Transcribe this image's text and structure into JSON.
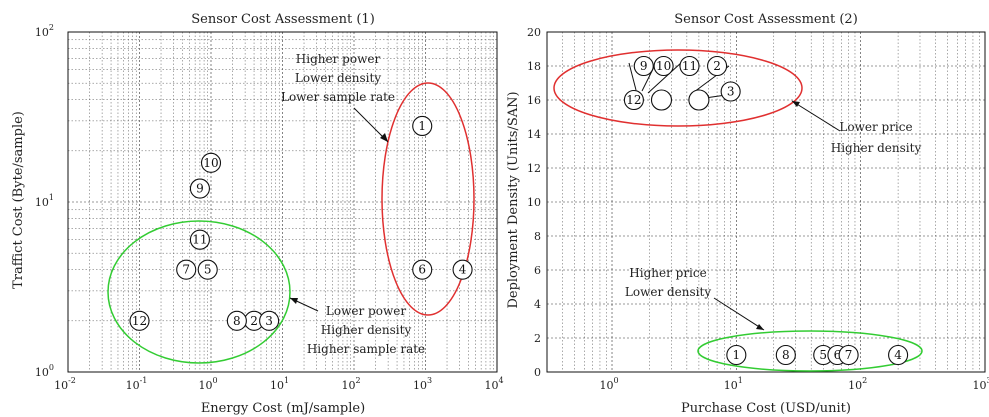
{
  "chart_data": [
    {
      "type": "scatter",
      "title": "Sensor Cost Assessment (1)",
      "xlabel": "Energy Cost (mJ/sample)",
      "ylabel": "Traffict Cost (Byte/sample)",
      "xscale": "log",
      "yscale": "log",
      "xlim": [
        0.01,
        10000
      ],
      "ylim": [
        1,
        100
      ],
      "grid": true,
      "x_ticks": [
        {
          "base": "10",
          "exp": "-2"
        },
        {
          "base": "10",
          "exp": "-1"
        },
        {
          "base": "10",
          "exp": "0"
        },
        {
          "base": "10",
          "exp": "1"
        },
        {
          "base": "10",
          "exp": "2"
        },
        {
          "base": "10",
          "exp": "3"
        },
        {
          "base": "10",
          "exp": "4"
        }
      ],
      "y_ticks": [
        {
          "base": "10",
          "exp": "0"
        },
        {
          "base": "10",
          "exp": "1"
        },
        {
          "base": "10",
          "exp": "2"
        }
      ],
      "points": [
        {
          "label": "1",
          "x": 900,
          "y": 28
        },
        {
          "label": "2",
          "x": 4,
          "y": 2
        },
        {
          "label": "3",
          "x": 6.5,
          "y": 2
        },
        {
          "label": "4",
          "x": 3300,
          "y": 4
        },
        {
          "label": "5",
          "x": 0.9,
          "y": 4
        },
        {
          "label": "6",
          "x": 900,
          "y": 4
        },
        {
          "label": "7",
          "x": 0.45,
          "y": 4
        },
        {
          "label": "8",
          "x": 2.3,
          "y": 2
        },
        {
          "label": "9",
          "x": 0.7,
          "y": 12
        },
        {
          "label": "10",
          "x": 1.0,
          "y": 17
        },
        {
          "label": "11",
          "x": 0.7,
          "y": 6
        },
        {
          "label": "12",
          "x": 0.1,
          "y": 2
        }
      ],
      "annotations": [
        {
          "group": "red",
          "lines": [
            "Higher power",
            "Lower density",
            "Lower sample rate"
          ]
        },
        {
          "group": "green",
          "lines": [
            "Lower power",
            "Higher density",
            "Higher sample rate"
          ]
        }
      ]
    },
    {
      "type": "scatter",
      "title": "Sensor Cost Assessment (2)",
      "xlabel": "Purchase Cost (USD/unit)",
      "ylabel": "Deployment Density (Units/SAN)",
      "xscale": "log",
      "yscale": "linear",
      "xlim": [
        0.3,
        1000
      ],
      "ylim": [
        0,
        20
      ],
      "grid": true,
      "x_ticks": [
        {
          "base": "10",
          "exp": "0"
        },
        {
          "base": "10",
          "exp": "1"
        },
        {
          "base": "10",
          "exp": "2"
        },
        {
          "base": "10",
          "exp": "3"
        }
      ],
      "y_ticks": [
        "0",
        "2",
        "4",
        "6",
        "8",
        "10",
        "12",
        "14",
        "16",
        "18",
        "20"
      ],
      "points": [
        {
          "label": "1",
          "x": 10,
          "y": 1
        },
        {
          "label": "2",
          "x": 7,
          "y": 18
        },
        {
          "label": "3",
          "x": 9,
          "y": 16.5
        },
        {
          "label": "4",
          "x": 200,
          "y": 1
        },
        {
          "label": "5",
          "x": 50,
          "y": 1
        },
        {
          "label": "6",
          "x": 65,
          "y": 1
        },
        {
          "label": "7",
          "x": 80,
          "y": 1
        },
        {
          "label": "8",
          "x": 25,
          "y": 1
        },
        {
          "label": "9",
          "x": 1.8,
          "y": 18
        },
        {
          "label": "10",
          "x": 2.6,
          "y": 18
        },
        {
          "label": "11",
          "x": 4.2,
          "y": 18
        },
        {
          "label": "12",
          "x": 1.5,
          "y": 16
        }
      ],
      "unlabeled_markers": [
        {
          "x": 2.5,
          "y": 16
        },
        {
          "x": 5.0,
          "y": 16
        }
      ],
      "annotations": [
        {
          "group": "red",
          "lines": [
            "Lower price",
            "Higher density"
          ]
        },
        {
          "group": "green",
          "lines": [
            "Higher price",
            "Lower density"
          ]
        }
      ]
    }
  ]
}
